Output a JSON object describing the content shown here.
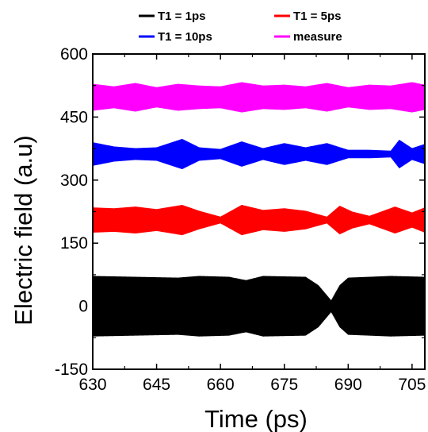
{
  "chart_data": {
    "type": "line",
    "title": "",
    "xlabel": "Time (ps)",
    "ylabel": "Electric field (a.u)",
    "xlim": [
      630,
      708
    ],
    "ylim": [
      -150,
      600
    ],
    "x_ticks": [
      "630",
      "645",
      "660",
      "675",
      "690",
      "705"
    ],
    "x_tick_values": [
      630,
      645,
      660,
      675,
      690,
      705
    ],
    "y_ticks": [
      "-150",
      "0",
      "150",
      "300",
      "450",
      "600"
    ],
    "y_tick_values": [
      -150,
      0,
      150,
      300,
      450,
      600
    ],
    "grid": false,
    "legend_position": "top",
    "series": [
      {
        "name": "T1 = 1ps",
        "color": "#000000",
        "offset": 0,
        "envelope_time": [
          630,
          640,
          650,
          655,
          662,
          666,
          670,
          680,
          683,
          686,
          688,
          690,
          695,
          700,
          708
        ],
        "envelope_amplitude": [
          72,
          70,
          68,
          72,
          70,
          62,
          72,
          70,
          50,
          14,
          50,
          68,
          70,
          72,
          70
        ]
      },
      {
        "name": "T1 = 5ps",
        "color": "#ff0000",
        "offset": 205,
        "envelope_time": [
          630,
          635,
          640,
          645,
          651,
          655,
          660,
          665,
          670,
          675,
          680,
          685,
          688,
          691,
          695,
          701,
          705,
          708
        ],
        "envelope_amplitude": [
          30,
          28,
          32,
          26,
          36,
          22,
          8,
          36,
          24,
          28,
          22,
          8,
          34,
          20,
          10,
          32,
          18,
          30
        ]
      },
      {
        "name": "T1 = 10ps",
        "color": "#0000ff",
        "offset": 362,
        "envelope_time": [
          630,
          635,
          640,
          645,
          651,
          655,
          660,
          665,
          670,
          675,
          680,
          685,
          690,
          695,
          700,
          702,
          705,
          708
        ],
        "envelope_amplitude": [
          28,
          18,
          14,
          16,
          36,
          16,
          12,
          30,
          14,
          26,
          16,
          26,
          10,
          10,
          8,
          34,
          14,
          24
        ]
      },
      {
        "name": "measure",
        "color": "#ff00ff",
        "offset": 497,
        "envelope_time": [
          630,
          635,
          640,
          645,
          650,
          655,
          660,
          665,
          670,
          675,
          680,
          685,
          690,
          695,
          700,
          705,
          708
        ],
        "envelope_amplitude": [
          32,
          26,
          34,
          24,
          32,
          28,
          26,
          36,
          28,
          30,
          26,
          34,
          24,
          30,
          28,
          36,
          30
        ]
      }
    ]
  }
}
